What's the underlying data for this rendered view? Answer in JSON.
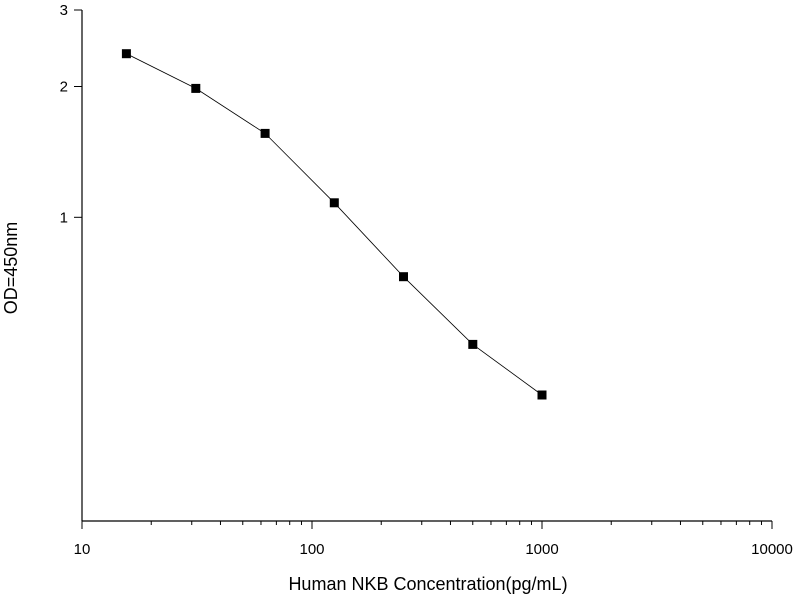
{
  "chart_data": {
    "type": "scatter",
    "title": "",
    "xlabel": "Human NKB Concentration(pg/mL)",
    "ylabel": "OD=450nm",
    "x_scale": "log",
    "y_scale": "log",
    "xlim": [
      10,
      10000
    ],
    "ylim": [
      0.2,
      3
    ],
    "x_ticks": [
      10,
      100,
      1000,
      10000
    ],
    "x_tick_labels": [
      "10",
      "100",
      "1000",
      "10000"
    ],
    "y_ticks": [
      1,
      2,
      3
    ],
    "y_tick_labels": [
      "1",
      "2",
      "3"
    ],
    "grid": false,
    "legend": "none",
    "marker": "square",
    "connected_by_line": true,
    "series": [
      {
        "x": [
          15.6,
          31.25,
          62.5,
          125,
          250,
          500,
          1000
        ],
        "y": [
          2.38,
          1.98,
          1.56,
          1.08,
          0.73,
          0.51,
          0.39
        ]
      }
    ],
    "colors": {
      "marker": "#000000",
      "line": "#000000",
      "axis": "#000000"
    }
  }
}
